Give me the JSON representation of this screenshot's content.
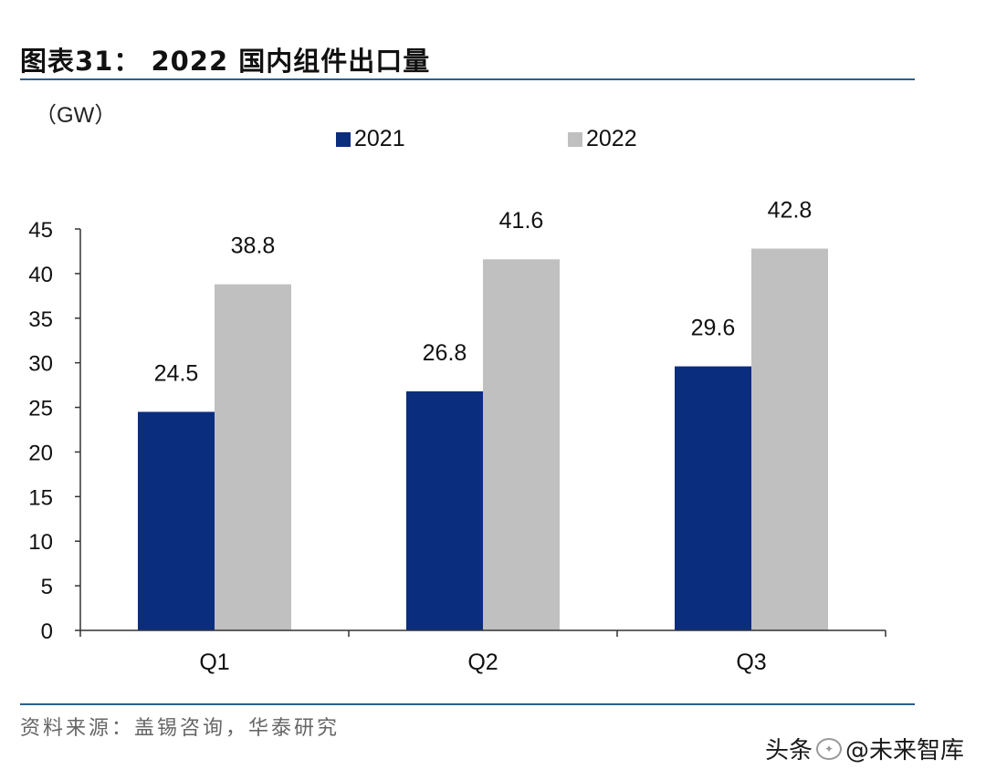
{
  "page": {
    "title": "图表31： 2022 国内组件出口量",
    "source": "资料来源：盖锡咨询，华泰研究",
    "watermark": {
      "prefix": "头条",
      "name": "@未来智库"
    }
  },
  "chart_data": {
    "type": "bar",
    "title": "2022 国内组件出口量",
    "unit": "（GW）",
    "categories": [
      "Q1",
      "Q2",
      "Q3"
    ],
    "series": [
      {
        "name": "2021",
        "color": "#0b2d7e",
        "values": [
          24.5,
          26.8,
          29.6
        ],
        "labels": [
          "24.5",
          "26.8",
          "29.6"
        ]
      },
      {
        "name": "2022",
        "color": "#c0c0c0",
        "values": [
          38.8,
          41.6,
          42.8
        ],
        "labels": [
          "38.8",
          "41.6",
          "42.8"
        ]
      }
    ],
    "ylim": [
      0,
      45
    ],
    "yticks": [
      0,
      5,
      10,
      15,
      20,
      25,
      30,
      35,
      40,
      45
    ],
    "grid": false,
    "legend_position": "top"
  }
}
